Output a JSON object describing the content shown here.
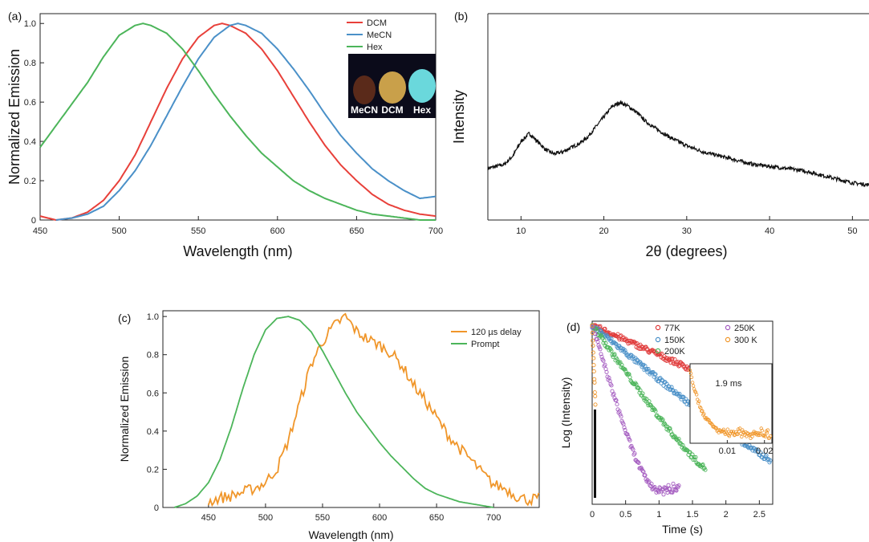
{
  "chart_data": [
    {
      "panel": "(a)",
      "type": "line",
      "xlabel": "Wavelength (nm)",
      "ylabel": "Normalized Emission",
      "xlim": [
        450,
        700
      ],
      "ylim": [
        0,
        1.05
      ],
      "xticks": [
        450,
        500,
        550,
        600,
        650,
        700
      ],
      "yticks": [
        0,
        0.2,
        0.4,
        0.6,
        0.8,
        1.0
      ],
      "ytick_labels": [
        "0",
        "0.2",
        "0.4",
        "0.6",
        "0.8",
        "1.0"
      ],
      "legend_position": "top-right",
      "inset_photo_labels": [
        "MeCN",
        "DCM",
        "Hex"
      ],
      "series": [
        {
          "name": "DCM",
          "color": "#e8403a",
          "x": [
            450,
            460,
            470,
            480,
            490,
            500,
            510,
            520,
            530,
            540,
            550,
            560,
            565,
            570,
            580,
            590,
            600,
            610,
            620,
            630,
            640,
            650,
            660,
            670,
            680,
            690,
            700
          ],
          "y": [
            0.02,
            0.0,
            0.01,
            0.04,
            0.1,
            0.2,
            0.33,
            0.5,
            0.67,
            0.82,
            0.93,
            0.99,
            1.0,
            0.99,
            0.95,
            0.87,
            0.76,
            0.63,
            0.5,
            0.38,
            0.28,
            0.2,
            0.13,
            0.08,
            0.05,
            0.03,
            0.02
          ]
        },
        {
          "name": "MeCN",
          "color": "#4a90c8",
          "x": [
            460,
            470,
            480,
            490,
            500,
            510,
            520,
            530,
            540,
            550,
            560,
            570,
            575,
            580,
            590,
            600,
            610,
            620,
            630,
            640,
            650,
            660,
            670,
            680,
            690,
            700
          ],
          "y": [
            0.0,
            0.01,
            0.03,
            0.07,
            0.15,
            0.25,
            0.38,
            0.53,
            0.68,
            0.82,
            0.93,
            0.99,
            1.0,
            0.99,
            0.95,
            0.87,
            0.77,
            0.66,
            0.54,
            0.43,
            0.34,
            0.26,
            0.2,
            0.15,
            0.11,
            0.12
          ]
        },
        {
          "name": "Hex",
          "color": "#4cb55a",
          "x": [
            450,
            460,
            470,
            480,
            490,
            500,
            510,
            515,
            520,
            530,
            540,
            550,
            560,
            570,
            580,
            590,
            600,
            610,
            620,
            630,
            640,
            650,
            660,
            670,
            680,
            690,
            700
          ],
          "y": [
            0.37,
            0.48,
            0.59,
            0.7,
            0.83,
            0.94,
            0.99,
            1.0,
            0.99,
            0.95,
            0.87,
            0.76,
            0.64,
            0.53,
            0.43,
            0.34,
            0.27,
            0.2,
            0.15,
            0.11,
            0.08,
            0.05,
            0.03,
            0.02,
            0.01,
            0.0,
            0.0
          ]
        }
      ]
    },
    {
      "panel": "(b)",
      "type": "line",
      "xlabel": "2θ (degrees)",
      "ylabel": "Intensity",
      "xlim": [
        6,
        52
      ],
      "xticks": [
        10,
        20,
        30,
        40,
        50
      ],
      "series": [
        {
          "name": "",
          "color": "#111111",
          "x": [
            6,
            8,
            9,
            10,
            11,
            12,
            13,
            14,
            15,
            16,
            17,
            18,
            19,
            20,
            21,
            22,
            23,
            24,
            25,
            26,
            28,
            30,
            32,
            34,
            36,
            38,
            40,
            42,
            44,
            46,
            48,
            50,
            52
          ],
          "y": [
            0.25,
            0.27,
            0.31,
            0.38,
            0.42,
            0.38,
            0.34,
            0.32,
            0.33,
            0.35,
            0.37,
            0.4,
            0.45,
            0.5,
            0.55,
            0.57,
            0.55,
            0.52,
            0.48,
            0.45,
            0.4,
            0.36,
            0.33,
            0.31,
            0.29,
            0.27,
            0.26,
            0.25,
            0.24,
            0.22,
            0.2,
            0.18,
            0.17
          ]
        }
      ]
    },
    {
      "panel": "(c)",
      "type": "line",
      "xlabel": "Wavelength (nm)",
      "ylabel": "Normalized Emission",
      "xlim": [
        410,
        740
      ],
      "ylim": [
        0,
        1.03
      ],
      "xticks": [
        450,
        500,
        550,
        600,
        650,
        700
      ],
      "yticks": [
        0,
        0.2,
        0.4,
        0.6,
        0.8,
        1.0
      ],
      "ytick_labels": [
        "0",
        "0.2",
        "0.4",
        "0.6",
        "0.8",
        "1.0"
      ],
      "legend_position": "top-right",
      "series": [
        {
          "name": "120 µs delay",
          "color": "#f0962a",
          "x": [
            450,
            460,
            470,
            480,
            490,
            500,
            505,
            510,
            520,
            530,
            540,
            550,
            560,
            570,
            575,
            580,
            590,
            600,
            610,
            620,
            630,
            640,
            650,
            660,
            670,
            680,
            690,
            700,
            710,
            720,
            730,
            740
          ],
          "y": [
            0.03,
            0.05,
            0.06,
            0.08,
            0.1,
            0.13,
            0.17,
            0.2,
            0.35,
            0.55,
            0.75,
            0.87,
            0.95,
            1.0,
            0.96,
            0.92,
            0.88,
            0.85,
            0.81,
            0.74,
            0.64,
            0.56,
            0.47,
            0.38,
            0.31,
            0.25,
            0.18,
            0.12,
            0.1,
            0.06,
            0.04,
            0.05
          ]
        },
        {
          "name": "Prompt",
          "color": "#4cb55a",
          "x": [
            420,
            430,
            440,
            450,
            460,
            470,
            480,
            490,
            500,
            510,
            520,
            530,
            540,
            550,
            560,
            570,
            580,
            590,
            600,
            610,
            620,
            630,
            640,
            650,
            660,
            670,
            680,
            690,
            700
          ],
          "y": [
            0.0,
            0.02,
            0.06,
            0.13,
            0.25,
            0.42,
            0.62,
            0.8,
            0.93,
            0.99,
            1.0,
            0.98,
            0.92,
            0.82,
            0.71,
            0.6,
            0.5,
            0.42,
            0.34,
            0.27,
            0.21,
            0.15,
            0.1,
            0.07,
            0.05,
            0.03,
            0.02,
            0.01,
            0.0
          ]
        }
      ]
    },
    {
      "panel": "(d)",
      "type": "scatter",
      "xlabel": "Time (s)",
      "ylabel": "Log (Intensity)",
      "xlim": [
        0,
        2.7
      ],
      "xticks": [
        0,
        0.5,
        1.0,
        1.5,
        2.0,
        2.5
      ],
      "legend_position": "top-right",
      "series": [
        {
          "name": "77K",
          "color": "#e03a3a",
          "decay": 1.1,
          "floor": 0.1,
          "tmax": 2.7
        },
        {
          "name": "150K",
          "color": "#4a90c8",
          "decay": 0.6,
          "floor": 0.07,
          "tmax": 2.7
        },
        {
          "name": "200K",
          "color": "#4cb55a",
          "decay": 0.35,
          "floor": 0.05,
          "tmax": 1.7
        },
        {
          "name": "250K",
          "color": "#a45cc0",
          "decay": 0.15,
          "floor": 0.04,
          "tmax": 1.3
        },
        {
          "name": "300 K",
          "color": "#f0962a",
          "decay": 0.02,
          "floor": 0.1,
          "tmax": 0.05
        }
      ],
      "inset": {
        "annotation": "1.9 ms",
        "xlim": [
          0,
          0.022
        ],
        "xticks": [
          0.01,
          0.02
        ],
        "series_name": "300 K",
        "decay": 0.0035
      }
    }
  ]
}
